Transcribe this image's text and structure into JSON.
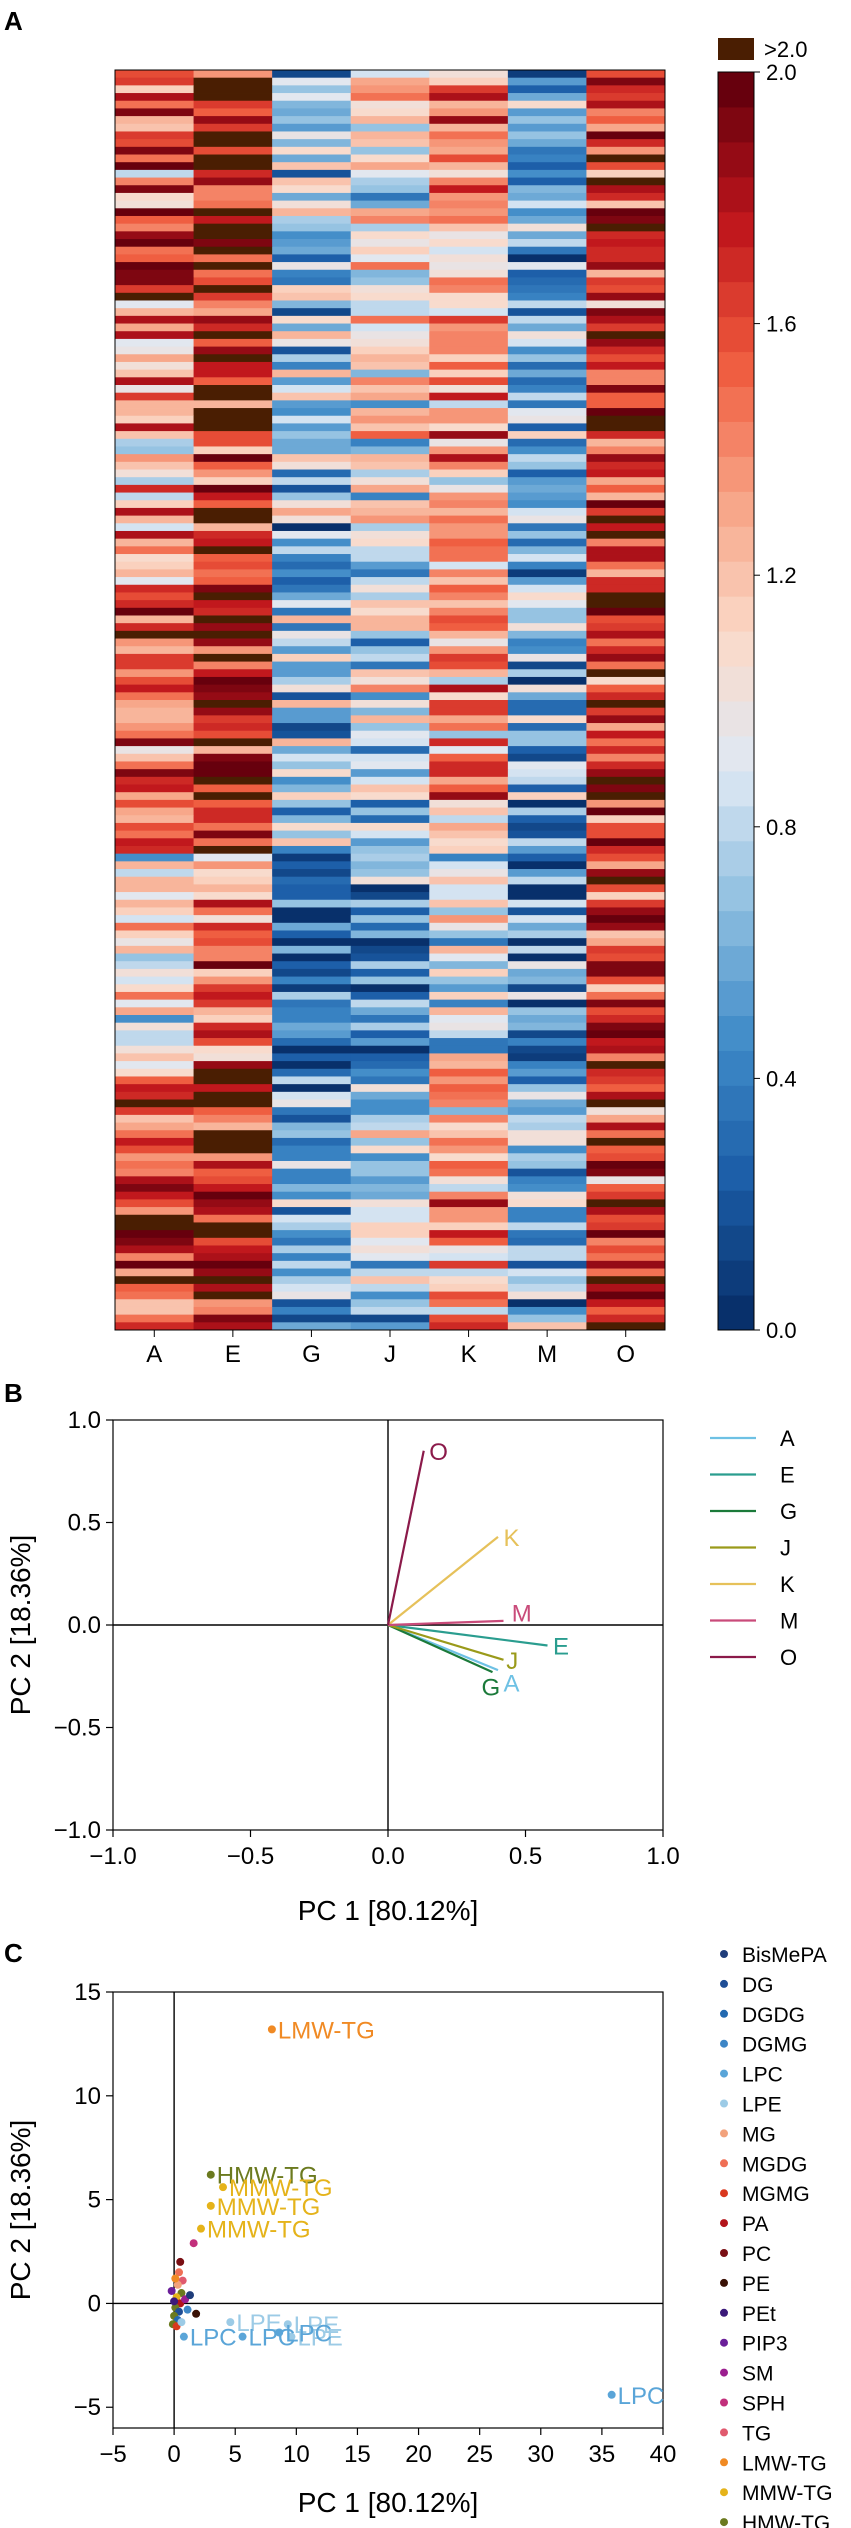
{
  "panels": {
    "a": "A",
    "b": "B",
    "c": "C"
  },
  "heatmap": {
    "columns": [
      "A",
      "E",
      "G",
      "J",
      "K",
      "M",
      "O"
    ],
    "colorbar": {
      "top_label": ">2.0",
      "over_color": "#4a1e02",
      "ticks": [
        2.0,
        1.6,
        1.2,
        0.8,
        0.4,
        0.0
      ],
      "tick_labels": [
        "2.0",
        "1.6",
        "1.2",
        "0.8",
        "0.4",
        "0.0"
      ],
      "min": 0.0,
      "max": 2.0,
      "color_stops": [
        "#08306b",
        "#1c5ea8",
        "#3f8bc8",
        "#8fbfe0",
        "#dfe9f4",
        "#fbd9c8",
        "#f7a284",
        "#ef5a3d",
        "#c0161c",
        "#67000d"
      ]
    },
    "column_means": [
      1.45,
      1.75,
      0.55,
      0.7,
      1.15,
      0.5,
      1.6
    ],
    "bands": [
      {
        "rows": 34,
        "offsets": [
          0.0,
          0.05,
          0.1,
          0.2,
          0.1,
          0.0,
          0.0
        ]
      },
      {
        "rows": 34,
        "offsets": [
          -0.1,
          0.0,
          0.15,
          0.2,
          0.15,
          0.0,
          0.05
        ]
      },
      {
        "rows": 34,
        "offsets": [
          0.1,
          0.1,
          0.2,
          0.15,
          0.2,
          0.05,
          0.15
        ]
      },
      {
        "rows": 28,
        "offsets": [
          -0.4,
          -0.35,
          -0.3,
          -0.25,
          -0.3,
          -0.1,
          0.0
        ]
      },
      {
        "rows": 34,
        "offsets": [
          0.15,
          0.1,
          -0.05,
          0.0,
          0.1,
          0.05,
          0.0
        ]
      }
    ]
  },
  "chart_data": [
    {
      "type": "line",
      "title": "",
      "xlabel": "PC 1 [80.12%]",
      "ylabel": "PC 2 [18.36%]",
      "xlim": [
        -1.0,
        1.0
      ],
      "ylim": [
        -1.0,
        1.0
      ],
      "xticks": [
        -1.0,
        -0.5,
        0.0,
        0.5,
        1.0
      ],
      "xtick_labels": [
        "−1.0",
        "−0.5",
        "0.0",
        "0.5",
        "1.0"
      ],
      "yticks": [
        -1.0,
        -0.5,
        0.0,
        0.5,
        1.0
      ],
      "ytick_labels": [
        "−1.0",
        "−0.5",
        "0.0",
        "0.5",
        "1.0"
      ],
      "legend_position": "right",
      "series": [
        {
          "name": "A",
          "x": [
            0,
            0.4
          ],
          "y": [
            0,
            -0.22
          ],
          "label_x": 0.42,
          "label_y": -0.28,
          "color": "#6ec1e4"
        },
        {
          "name": "E",
          "x": [
            0,
            0.58
          ],
          "y": [
            0,
            -0.1
          ],
          "label_x": 0.6,
          "label_y": -0.1,
          "color": "#2a9d8f"
        },
        {
          "name": "G",
          "x": [
            0,
            0.38
          ],
          "y": [
            0,
            -0.23
          ],
          "label_x": 0.34,
          "label_y": -0.3,
          "color": "#1b7a3a"
        },
        {
          "name": "J",
          "x": [
            0,
            0.42
          ],
          "y": [
            0,
            -0.17
          ],
          "label_x": 0.43,
          "label_y": -0.17,
          "color": "#9a9a1a"
        },
        {
          "name": "K",
          "x": [
            0,
            0.4
          ],
          "y": [
            0,
            0.43
          ],
          "label_x": 0.42,
          "label_y": 0.43,
          "color": "#e6c15a"
        },
        {
          "name": "M",
          "x": [
            0,
            0.42
          ],
          "y": [
            0,
            0.02
          ],
          "label_x": 0.45,
          "label_y": 0.06,
          "color": "#c94b7a"
        },
        {
          "name": "O",
          "x": [
            0,
            0.13
          ],
          "y": [
            0,
            0.85
          ],
          "label_x": 0.15,
          "label_y": 0.85,
          "color": "#8b1a4a"
        }
      ]
    },
    {
      "type": "scatter",
      "title": "",
      "xlabel": "PC 1 [80.12%]",
      "ylabel": "PC 2 [18.36%]",
      "xlim": [
        -5,
        40
      ],
      "ylim": [
        -6,
        15
      ],
      "xticks": [
        -5,
        0,
        5,
        10,
        15,
        20,
        25,
        30,
        35,
        40
      ],
      "xtick_labels": [
        "−5",
        "0",
        "5",
        "10",
        "15",
        "20",
        "25",
        "30",
        "35",
        "40"
      ],
      "yticks": [
        -5,
        0,
        5,
        10,
        15
      ],
      "ytick_labels": [
        "−5",
        "0",
        "5",
        "10",
        "15"
      ],
      "legend_position": "right",
      "legend": [
        {
          "name": "BisMePA",
          "color": "#1f3d7a"
        },
        {
          "name": "DG",
          "color": "#1f4e96"
        },
        {
          "name": "DGDG",
          "color": "#2369b0"
        },
        {
          "name": "DGMG",
          "color": "#3d86c6"
        },
        {
          "name": "LPC",
          "color": "#5aa5d8"
        },
        {
          "name": "LPE",
          "color": "#9ccbe6"
        },
        {
          "name": "MG",
          "color": "#f2a27c"
        },
        {
          "name": "MGDG",
          "color": "#ef6f55"
        },
        {
          "name": "MGMG",
          "color": "#d9381e"
        },
        {
          "name": "PA",
          "color": "#b3141a"
        },
        {
          "name": "PC",
          "color": "#7a0f14"
        },
        {
          "name": "PE",
          "color": "#3a1206"
        },
        {
          "name": "PEt",
          "color": "#3b1a7a"
        },
        {
          "name": "PIP3",
          "color": "#6a1f99"
        },
        {
          "name": "SM",
          "color": "#9b1f8f"
        },
        {
          "name": "SPH",
          "color": "#c2307c"
        },
        {
          "name": "TG",
          "color": "#e05a6e"
        },
        {
          "name": "LMW-TG",
          "color": "#f08a24"
        },
        {
          "name": "MMW-TG",
          "color": "#e5b31a"
        },
        {
          "name": "HMW-TG",
          "color": "#6b7a1f"
        }
      ],
      "points": [
        {
          "x": 8.0,
          "y": 13.2,
          "cls": "LMW-TG",
          "label": "LMW-TG"
        },
        {
          "x": 3.0,
          "y": 6.2,
          "cls": "HMW-TG",
          "label": "HMW-TG"
        },
        {
          "x": 4.0,
          "y": 5.6,
          "cls": "MMW-TG",
          "label": "MMW-TG"
        },
        {
          "x": 3.0,
          "y": 4.7,
          "cls": "MMW-TG",
          "label": "MMW-TG"
        },
        {
          "x": 2.2,
          "y": 3.6,
          "cls": "MMW-TG",
          "label": "MMW-TG"
        },
        {
          "x": 1.6,
          "y": 2.9,
          "cls": "SPH",
          "label": ""
        },
        {
          "x": 35.8,
          "y": -4.4,
          "cls": "LPC",
          "label": "LPC"
        },
        {
          "x": 4.6,
          "y": -0.9,
          "cls": "LPE",
          "label": "LPE"
        },
        {
          "x": 9.3,
          "y": -1.0,
          "cls": "LPE",
          "label": "LPE"
        },
        {
          "x": 9.6,
          "y": -1.6,
          "cls": "LPE",
          "label": "LPE"
        },
        {
          "x": 5.6,
          "y": -1.6,
          "cls": "LPC",
          "label": "LPC"
        },
        {
          "x": 8.6,
          "y": -1.4,
          "cls": "LPC",
          "label": "LPC"
        },
        {
          "x": 0.8,
          "y": -1.6,
          "cls": "LPC",
          "label": "LPC"
        },
        {
          "x": 1.8,
          "y": -0.5,
          "cls": "PE",
          "label": ""
        },
        {
          "x": 0.5,
          "y": 2.0,
          "cls": "PC",
          "label": ""
        },
        {
          "x": 0.4,
          "y": 1.5,
          "cls": "MGDG",
          "label": ""
        },
        {
          "x": 0.7,
          "y": 1.1,
          "cls": "TG",
          "label": ""
        },
        {
          "x": 0.3,
          "y": 0.9,
          "cls": "MG",
          "label": ""
        },
        {
          "x": 0.6,
          "y": 0.5,
          "cls": "HMW-TG",
          "label": ""
        },
        {
          "x": 0.2,
          "y": 0.3,
          "cls": "MMW-TG",
          "label": ""
        },
        {
          "x": 0.5,
          "y": 0.0,
          "cls": "PA",
          "label": ""
        },
        {
          "x": 0.1,
          "y": -0.2,
          "cls": "HMW-TG",
          "label": ""
        },
        {
          "x": 0.4,
          "y": -0.4,
          "cls": "DG",
          "label": ""
        },
        {
          "x": 0.0,
          "y": -0.6,
          "cls": "HMW-TG",
          "label": ""
        },
        {
          "x": 0.3,
          "y": -0.8,
          "cls": "DGDG",
          "label": ""
        },
        {
          "x": -0.1,
          "y": -1.0,
          "cls": "HMW-TG",
          "label": ""
        },
        {
          "x": 0.2,
          "y": -1.1,
          "cls": "MGMG",
          "label": ""
        },
        {
          "x": 1.1,
          "y": -0.3,
          "cls": "DGMG",
          "label": ""
        },
        {
          "x": 0.9,
          "y": 0.2,
          "cls": "SM",
          "label": ""
        },
        {
          "x": -0.2,
          "y": 0.6,
          "cls": "PIP3",
          "label": ""
        },
        {
          "x": 0.1,
          "y": 1.2,
          "cls": "LMW-TG",
          "label": ""
        },
        {
          "x": 0.6,
          "y": -0.9,
          "cls": "LPE",
          "label": ""
        },
        {
          "x": 1.3,
          "y": 0.4,
          "cls": "BisMePA",
          "label": ""
        },
        {
          "x": 0.0,
          "y": 0.1,
          "cls": "PEt",
          "label": ""
        }
      ]
    }
  ]
}
